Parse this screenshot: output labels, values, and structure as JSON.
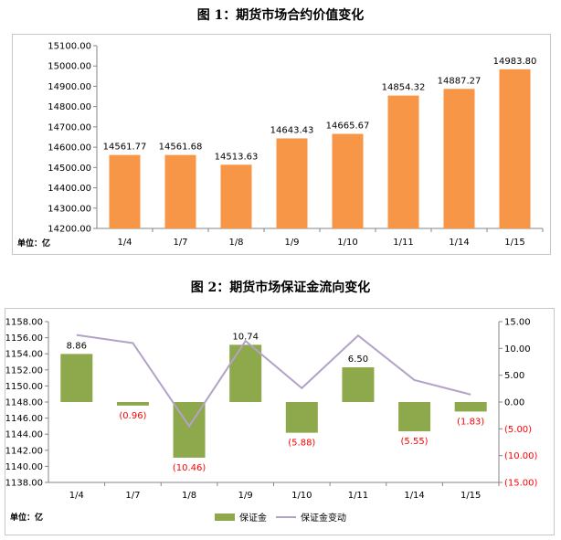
{
  "chart_data": [
    {
      "type": "bar",
      "title": "图 1：期货市场合约价值变化",
      "unit_label": "单位：亿",
      "categories": [
        "1/4",
        "1/7",
        "1/8",
        "1/9",
        "1/10",
        "1/11",
        "1/14",
        "1/15"
      ],
      "values": [
        14561.77,
        14561.68,
        14513.63,
        14643.43,
        14665.67,
        14854.32,
        14887.27,
        14983.8
      ],
      "value_labels": [
        "14561.77",
        "14561.68",
        "14513.63",
        "14643.43",
        "14665.67",
        "14854.32",
        "14887.27",
        "14983.80"
      ],
      "ylim": [
        14200,
        15100
      ],
      "yticks": [
        "14200.00",
        "14300.00",
        "14400.00",
        "14500.00",
        "14600.00",
        "14700.00",
        "14800.00",
        "14900.00",
        "15000.00",
        "15100.00"
      ],
      "bar_color": "#f79646",
      "grid": false
    },
    {
      "type": "bar+line",
      "title": "图 2：期货市场保证金流向变化",
      "unit_label": "单位：亿",
      "categories": [
        "1/4",
        "1/7",
        "1/8",
        "1/9",
        "1/10",
        "1/11",
        "1/14",
        "1/15"
      ],
      "left_axis": {
        "ylim": [
          1138,
          1158
        ],
        "ticks": [
          "1138.00",
          "1140.00",
          "1142.00",
          "1144.00",
          "1146.00",
          "1148.00",
          "1150.00",
          "1152.00",
          "1154.00",
          "1156.00",
          "1158.00"
        ]
      },
      "right_axis": {
        "ylim": [
          -15,
          15
        ],
        "ticks": [
          "15.00",
          "10.00",
          "5.00",
          "0.00",
          "(5.00)",
          "(10.00)",
          "(15.00)"
        ]
      },
      "bar_baseline": 1148,
      "series": [
        {
          "name": "保证金",
          "kind": "bar",
          "axis": "left",
          "color": "#8ea84c",
          "values": [
            1153.98,
            1147.56,
            1141.08,
            1155.12,
            1144.18,
            1152.32,
            1144.36,
            1146.82
          ]
        },
        {
          "name": "保证金变动",
          "kind": "line",
          "axis": "right",
          "color": "#b3a2c7",
          "values": [
            12.5,
            11.0,
            -4.5,
            11.4,
            2.6,
            12.4,
            4.1,
            1.4
          ]
        }
      ],
      "value_labels": [
        "8.86",
        "(0.96)",
        "(10.46)",
        "10.74",
        "(5.88)",
        "6.50",
        "(5.55)",
        "(1.83)"
      ],
      "label_colors": {
        "positive": "#000000",
        "negative": "#ff0000"
      },
      "legend_position": "bottom",
      "grid": false
    }
  ]
}
